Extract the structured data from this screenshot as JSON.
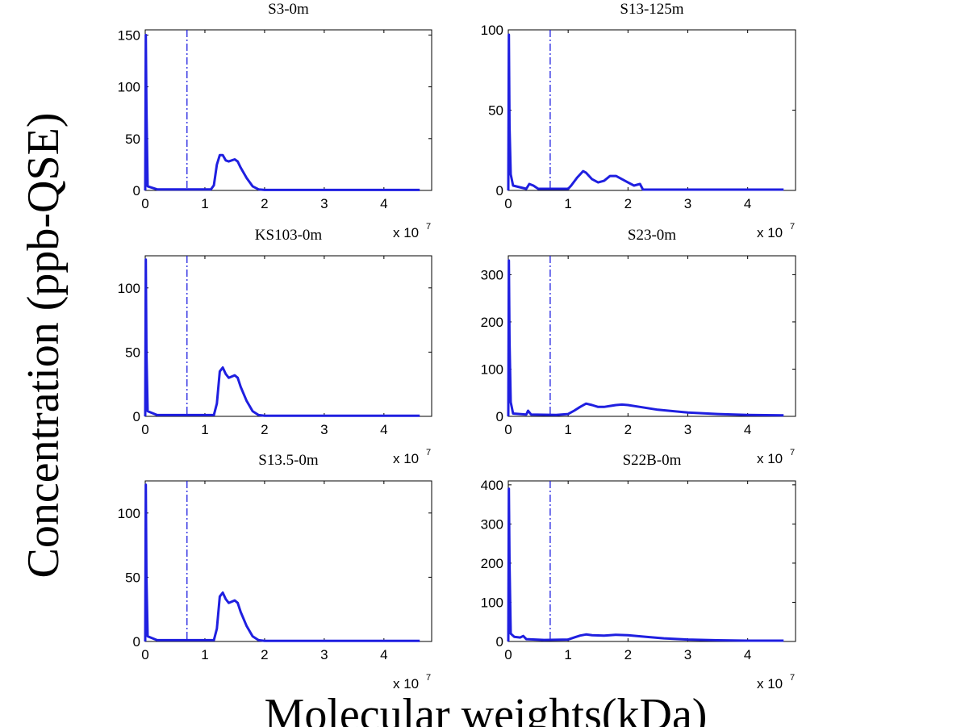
{
  "figure": {
    "ylabel": "Concentration (ppb-QSE)",
    "xlabel": "Molecular weights(kDa)"
  },
  "colors": {
    "series": "#1f1fe0",
    "axis": "#000000",
    "background": "#ffffff"
  },
  "chart_data": [
    {
      "type": "line",
      "title": "S3-0m",
      "xlim": [
        0,
        4.8
      ],
      "ylim": [
        0,
        155
      ],
      "x_multiplier_label": "x 10",
      "x_multiplier_exp": "7",
      "xticks": [
        0,
        1,
        2,
        3,
        4
      ],
      "yticks": [
        0,
        50,
        100,
        150
      ],
      "vline_x": 0.7,
      "grid": false,
      "legend": "none",
      "series": [
        {
          "points": [
            [
              0,
              0
            ],
            [
              0.01,
              150
            ],
            [
              0.02,
              80
            ],
            [
              0.04,
              4
            ],
            [
              0.2,
              1
            ],
            [
              1.1,
              1
            ],
            [
              1.15,
              5
            ],
            [
              1.2,
              25
            ],
            [
              1.25,
              34
            ],
            [
              1.3,
              34
            ],
            [
              1.35,
              29
            ],
            [
              1.4,
              28
            ],
            [
              1.5,
              30
            ],
            [
              1.55,
              28
            ],
            [
              1.6,
              22
            ],
            [
              1.7,
              12
            ],
            [
              1.8,
              4
            ],
            [
              1.9,
              1
            ],
            [
              2.0,
              0.5
            ],
            [
              4.6,
              0.5
            ]
          ]
        }
      ]
    },
    {
      "type": "line",
      "title": "S13-125m",
      "xlim": [
        0,
        4.8
      ],
      "ylim": [
        0,
        100
      ],
      "x_multiplier_label": "x 10",
      "x_multiplier_exp": "7",
      "xticks": [
        0,
        1,
        2,
        3,
        4
      ],
      "yticks": [
        0,
        50,
        100
      ],
      "vline_x": 0.7,
      "grid": false,
      "legend": "none",
      "series": [
        {
          "points": [
            [
              0,
              0
            ],
            [
              0.01,
              97
            ],
            [
              0.02,
              40
            ],
            [
              0.04,
              10
            ],
            [
              0.08,
              3
            ],
            [
              0.3,
              1
            ],
            [
              0.35,
              4
            ],
            [
              0.42,
              3
            ],
            [
              0.5,
              1
            ],
            [
              1.0,
              1
            ],
            [
              1.05,
              3
            ],
            [
              1.15,
              8
            ],
            [
              1.25,
              12
            ],
            [
              1.3,
              11
            ],
            [
              1.4,
              7
            ],
            [
              1.5,
              5
            ],
            [
              1.6,
              6
            ],
            [
              1.7,
              9
            ],
            [
              1.8,
              9
            ],
            [
              1.9,
              7
            ],
            [
              2.0,
              5
            ],
            [
              2.1,
              3
            ],
            [
              2.2,
              4
            ],
            [
              2.25,
              0.5
            ],
            [
              4.6,
              0.5
            ]
          ]
        }
      ]
    },
    {
      "type": "line",
      "title": "KS103-0m",
      "xlim": [
        0,
        4.8
      ],
      "ylim": [
        0,
        125
      ],
      "x_multiplier_label": "x 10",
      "x_multiplier_exp": "7",
      "xticks": [
        0,
        1,
        2,
        3,
        4
      ],
      "yticks": [
        0,
        50,
        100
      ],
      "vline_x": 0.7,
      "grid": false,
      "legend": "none",
      "series": [
        {
          "points": [
            [
              0,
              0
            ],
            [
              0.01,
              122
            ],
            [
              0.02,
              50
            ],
            [
              0.04,
              4
            ],
            [
              0.2,
              1
            ],
            [
              1.15,
              1
            ],
            [
              1.2,
              10
            ],
            [
              1.25,
              35
            ],
            [
              1.3,
              38
            ],
            [
              1.35,
              33
            ],
            [
              1.4,
              30
            ],
            [
              1.5,
              32
            ],
            [
              1.55,
              30
            ],
            [
              1.6,
              23
            ],
            [
              1.7,
              12
            ],
            [
              1.8,
              4
            ],
            [
              1.9,
              1
            ],
            [
              2.0,
              0.5
            ],
            [
              4.6,
              0.5
            ]
          ]
        }
      ]
    },
    {
      "type": "line",
      "title": "S23-0m",
      "xlim": [
        0,
        4.8
      ],
      "ylim": [
        0,
        340
      ],
      "x_multiplier_label": "x 10",
      "x_multiplier_exp": "7",
      "xticks": [
        0,
        1,
        2,
        3,
        4
      ],
      "yticks": [
        0,
        100,
        200,
        300
      ],
      "vline_x": 0.7,
      "grid": false,
      "legend": "none",
      "series": [
        {
          "points": [
            [
              0,
              0
            ],
            [
              0.01,
              330
            ],
            [
              0.02,
              160
            ],
            [
              0.04,
              30
            ],
            [
              0.08,
              6
            ],
            [
              0.3,
              4
            ],
            [
              0.33,
              12
            ],
            [
              0.38,
              4
            ],
            [
              0.8,
              3
            ],
            [
              1.0,
              5
            ],
            [
              1.1,
              12
            ],
            [
              1.2,
              20
            ],
            [
              1.3,
              27
            ],
            [
              1.4,
              24
            ],
            [
              1.5,
              20
            ],
            [
              1.6,
              20
            ],
            [
              1.7,
              22
            ],
            [
              1.8,
              24
            ],
            [
              1.9,
              25
            ],
            [
              2.0,
              24
            ],
            [
              2.2,
              20
            ],
            [
              2.5,
              14
            ],
            [
              3.0,
              8
            ],
            [
              3.5,
              5
            ],
            [
              4.0,
              3
            ],
            [
              4.6,
              2
            ]
          ]
        }
      ]
    },
    {
      "type": "line",
      "title": "S13.5-0m",
      "xlim": [
        0,
        4.8
      ],
      "ylim": [
        0,
        125
      ],
      "x_multiplier_label": "x 10",
      "x_multiplier_exp": "7",
      "xticks": [
        0,
        1,
        2,
        3,
        4
      ],
      "yticks": [
        0,
        50,
        100
      ],
      "vline_x": 0.7,
      "grid": false,
      "legend": "none",
      "series": [
        {
          "points": [
            [
              0,
              0
            ],
            [
              0.01,
              122
            ],
            [
              0.02,
              50
            ],
            [
              0.04,
              4
            ],
            [
              0.2,
              1
            ],
            [
              1.15,
              1
            ],
            [
              1.2,
              10
            ],
            [
              1.25,
              35
            ],
            [
              1.3,
              38
            ],
            [
              1.35,
              33
            ],
            [
              1.4,
              30
            ],
            [
              1.5,
              32
            ],
            [
              1.55,
              30
            ],
            [
              1.6,
              23
            ],
            [
              1.7,
              12
            ],
            [
              1.8,
              4
            ],
            [
              1.9,
              1
            ],
            [
              2.0,
              0.5
            ],
            [
              4.6,
              0.5
            ]
          ]
        }
      ]
    },
    {
      "type": "line",
      "title": "S22B-0m",
      "xlim": [
        0,
        4.8
      ],
      "ylim": [
        0,
        410
      ],
      "x_multiplier_label": "x 10",
      "x_multiplier_exp": "7",
      "xticks": [
        0,
        1,
        2,
        3,
        4
      ],
      "yticks": [
        0,
        100,
        200,
        300,
        400
      ],
      "vline_x": 0.7,
      "grid": false,
      "legend": "none",
      "series": [
        {
          "points": [
            [
              0,
              0
            ],
            [
              0.01,
              390
            ],
            [
              0.02,
              200
            ],
            [
              0.04,
              20
            ],
            [
              0.1,
              12
            ],
            [
              0.2,
              10
            ],
            [
              0.25,
              14
            ],
            [
              0.3,
              6
            ],
            [
              0.6,
              4
            ],
            [
              1.0,
              5
            ],
            [
              1.1,
              10
            ],
            [
              1.2,
              15
            ],
            [
              1.3,
              18
            ],
            [
              1.4,
              16
            ],
            [
              1.6,
              15
            ],
            [
              1.8,
              17
            ],
            [
              2.0,
              16
            ],
            [
              2.3,
              12
            ],
            [
              2.6,
              8
            ],
            [
              3.0,
              5
            ],
            [
              3.5,
              3
            ],
            [
              4.0,
              2
            ],
            [
              4.6,
              2
            ]
          ]
        }
      ]
    }
  ]
}
